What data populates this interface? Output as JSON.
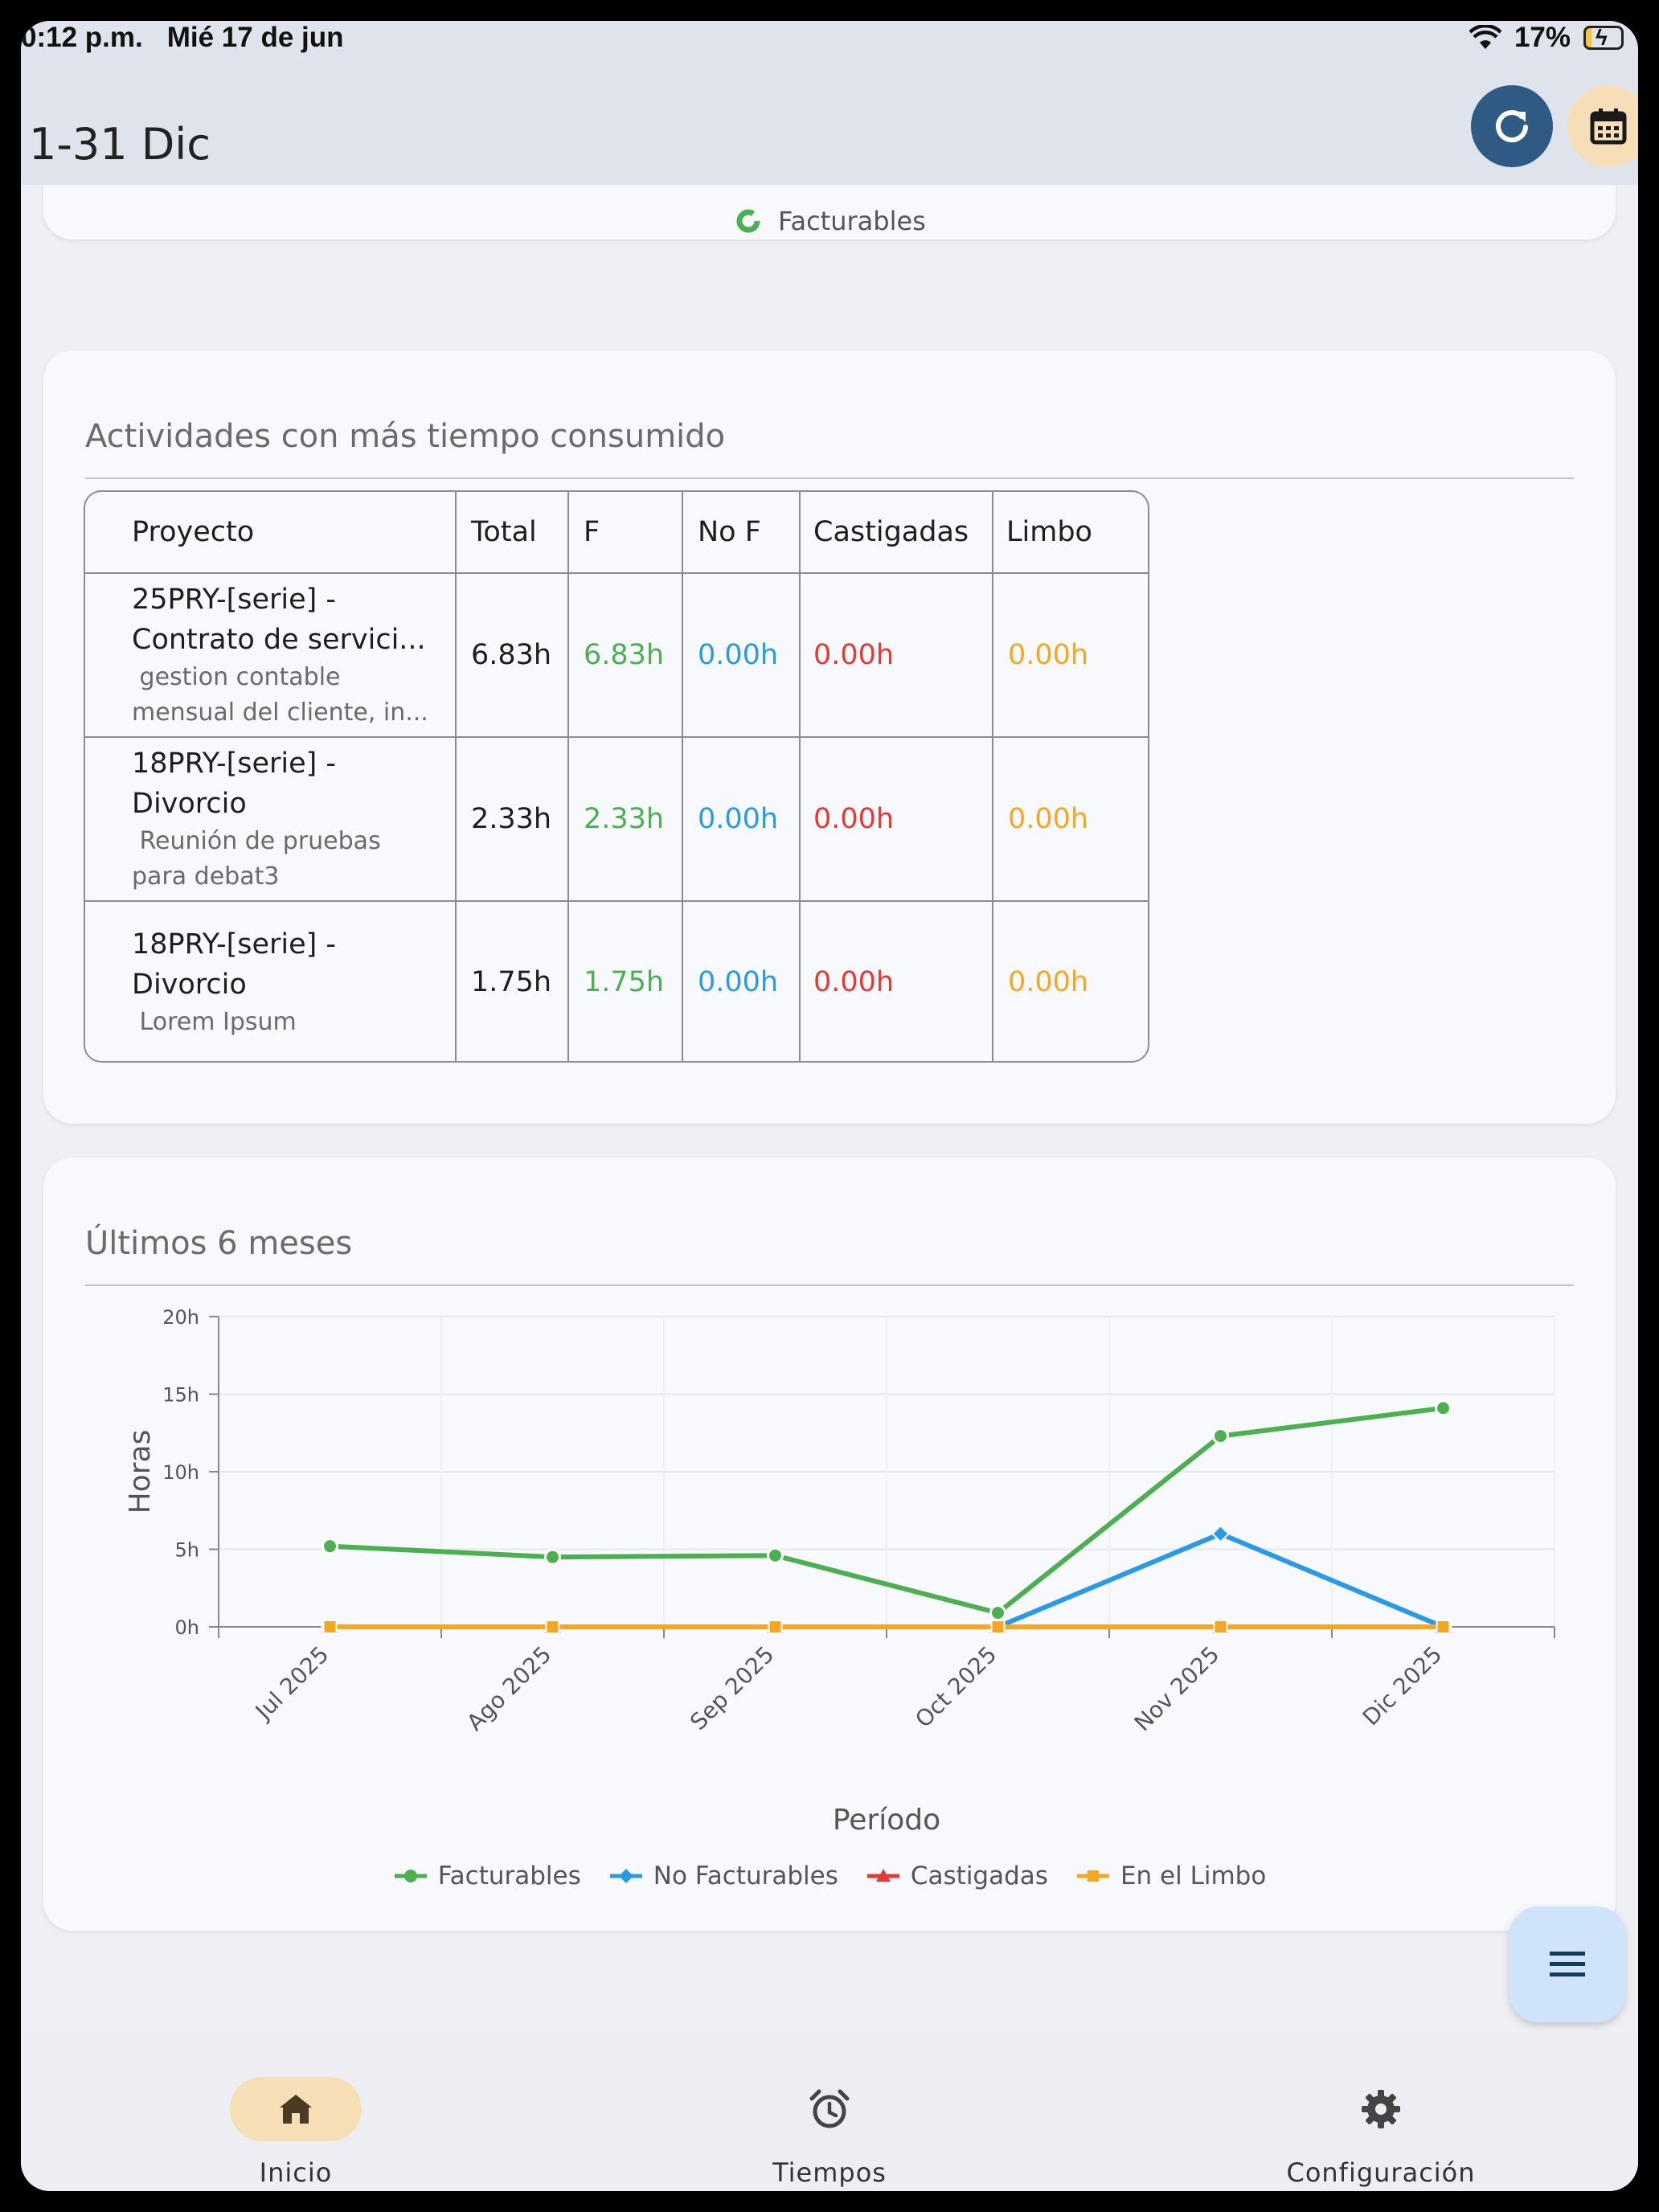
{
  "status_bar": {
    "time": "0:12 p.m.",
    "date": "Mié 17 de jun",
    "battery": "17%"
  },
  "app_bar": {
    "title": "1-31 Dic",
    "refresh_icon": "refresh-icon",
    "calendar_icon": "calendar-icon"
  },
  "top_card": {
    "legend_label": "Facturables"
  },
  "activities": {
    "title": "Actividades con más tiempo consumido",
    "columns": [
      "Proyecto",
      "Total",
      "F",
      "No F",
      "Castigadas",
      "Limbo"
    ],
    "rows": [
      {
        "project_line1": "25PRY-[serie] -",
        "project_line2": "Contrato de servici...",
        "desc_line1": " gestion contable",
        "desc_line2": "mensual del cliente, in...",
        "total": "6.83h",
        "f": "6.83h",
        "no_f": "0.00h",
        "castigadas": "0.00h",
        "limbo": "0.00h"
      },
      {
        "project_line1": "18PRY-[serie] -",
        "project_line2": "Divorcio",
        "desc_line1": " Reunión de pruebas",
        "desc_line2": "para debat3",
        "total": "2.33h",
        "f": "2.33h",
        "no_f": "0.00h",
        "castigadas": "0.00h",
        "limbo": "0.00h"
      },
      {
        "project_line1": "18PRY-[serie] -",
        "project_line2": "Divorcio",
        "desc_line1": " Lorem Ipsum",
        "desc_line2": "",
        "total": "1.75h",
        "f": "1.75h",
        "no_f": "0.00h",
        "castigadas": "0.00h",
        "limbo": "0.00h"
      }
    ]
  },
  "history": {
    "title": "Últimos 6 meses"
  },
  "chart_data": {
    "type": "line",
    "title": "",
    "xlabel": "Período",
    "ylabel": "Horas",
    "categories": [
      "Jul 2025",
      "Ago 2025",
      "Sep 2025",
      "Oct 2025",
      "Nov 2025",
      "Dic 2025"
    ],
    "y_ticks": [
      "0h",
      "5h",
      "10h",
      "15h",
      "20h"
    ],
    "ylim": [
      0,
      20
    ],
    "grid": true,
    "legend_position": "bottom",
    "series": [
      {
        "name": "Facturables",
        "color": "#4caf50",
        "marker": "circle",
        "values": [
          5.2,
          4.5,
          4.6,
          0.9,
          12.3,
          14.1
        ]
      },
      {
        "name": "No Facturables",
        "color": "#2b9ae6",
        "marker": "diamond",
        "values": [
          0,
          0,
          0,
          0,
          6.0,
          0
        ]
      },
      {
        "name": "Castigadas",
        "color": "#e53935",
        "marker": "triangle",
        "values": [
          0,
          0,
          0,
          0,
          0,
          0
        ]
      },
      {
        "name": "En el Limbo",
        "color": "#f5a623",
        "marker": "square",
        "values": [
          0,
          0,
          0,
          0,
          0,
          0
        ]
      }
    ]
  },
  "fab": {
    "icon": "menu-icon"
  },
  "bottom_nav": {
    "items": [
      {
        "label": "Inicio",
        "icon": "home-icon",
        "active": true
      },
      {
        "label": "Tiempos",
        "icon": "alarm-clock-icon",
        "active": false
      },
      {
        "label": "Configuración",
        "icon": "gear-icon",
        "active": false
      }
    ]
  }
}
